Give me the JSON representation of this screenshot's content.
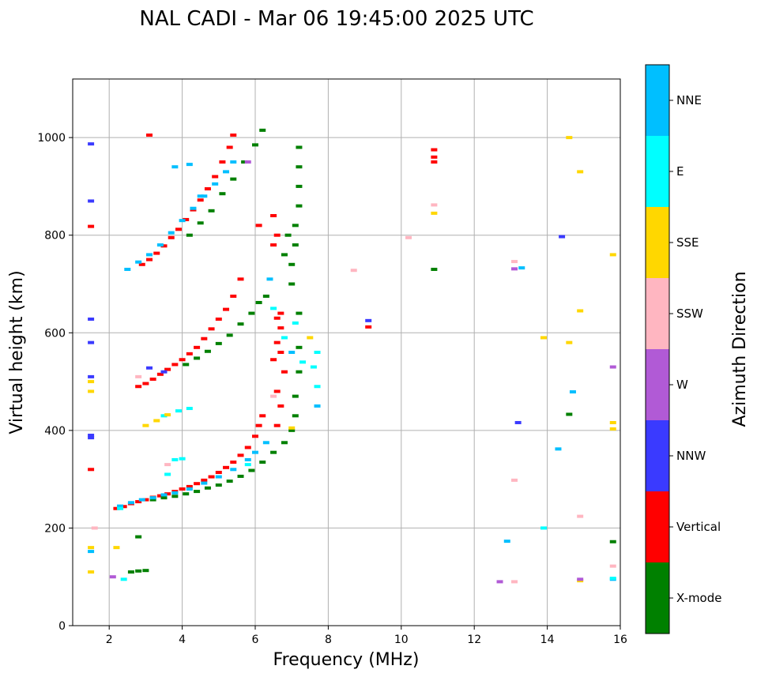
{
  "chart_data": {
    "type": "scatter",
    "title": "NAL CADI - Mar 06 19:45:00 2025 UTC",
    "xlabel": "Frequency (MHz)",
    "ylabel": "Virtual height (km)",
    "xlim": [
      1,
      16
    ],
    "ylim": [
      0,
      1120
    ],
    "xticks": [
      2,
      4,
      6,
      8,
      10,
      12,
      14,
      16
    ],
    "yticks": [
      0,
      200,
      400,
      600,
      800,
      1000
    ],
    "grid": true,
    "colorbar": {
      "title": "Azimuth Direction",
      "categories": [
        {
          "label": "X-mode",
          "color": "#008000"
        },
        {
          "label": "Vertical",
          "color": "#ff0000"
        },
        {
          "label": "NNW",
          "color": "#3a3aff"
        },
        {
          "label": "W",
          "color": "#b15ad6"
        },
        {
          "label": "SSW",
          "color": "#ffb6c1"
        },
        {
          "label": "SSE",
          "color": "#ffd700"
        },
        {
          "label": "E",
          "color": "#00ffff"
        },
        {
          "label": "NNE",
          "color": "#00bfff"
        }
      ]
    },
    "series": [
      {
        "name": "Vertical",
        "color": "#ff0000",
        "points": [
          [
            2.2,
            240
          ],
          [
            2.4,
            244
          ],
          [
            2.6,
            250
          ],
          [
            2.8,
            254
          ],
          [
            3.0,
            258
          ],
          [
            3.2,
            263
          ],
          [
            3.4,
            266
          ],
          [
            3.6,
            270
          ],
          [
            3.8,
            275
          ],
          [
            4.0,
            280
          ],
          [
            4.2,
            285
          ],
          [
            4.4,
            291
          ],
          [
            4.6,
            298
          ],
          [
            4.8,
            305
          ],
          [
            5.0,
            314
          ],
          [
            5.2,
            324
          ],
          [
            5.4,
            335
          ],
          [
            5.6,
            349
          ],
          [
            5.8,
            365
          ],
          [
            6.0,
            388
          ],
          [
            6.1,
            410
          ],
          [
            6.2,
            430
          ],
          [
            2.8,
            490
          ],
          [
            3.0,
            496
          ],
          [
            3.2,
            505
          ],
          [
            3.4,
            515
          ],
          [
            3.6,
            525
          ],
          [
            3.8,
            535
          ],
          [
            4.0,
            545
          ],
          [
            4.2,
            557
          ],
          [
            4.4,
            570
          ],
          [
            4.6,
            588
          ],
          [
            4.8,
            608
          ],
          [
            5.0,
            628
          ],
          [
            5.2,
            648
          ],
          [
            5.4,
            675
          ],
          [
            5.6,
            710
          ],
          [
            2.9,
            740
          ],
          [
            3.1,
            750
          ],
          [
            3.3,
            763
          ],
          [
            3.5,
            778
          ],
          [
            3.7,
            795
          ],
          [
            3.9,
            812
          ],
          [
            4.1,
            832
          ],
          [
            4.3,
            852
          ],
          [
            4.5,
            872
          ],
          [
            4.7,
            895
          ],
          [
            4.9,
            920
          ],
          [
            5.1,
            950
          ],
          [
            5.3,
            980
          ],
          [
            5.4,
            1005
          ],
          [
            6.6,
            410
          ],
          [
            6.7,
            450
          ],
          [
            6.6,
            480
          ],
          [
            6.8,
            520
          ],
          [
            6.5,
            545
          ],
          [
            6.7,
            560
          ],
          [
            6.6,
            580
          ],
          [
            6.7,
            610
          ],
          [
            6.6,
            630
          ],
          [
            6.7,
            640
          ],
          [
            6.5,
            840
          ],
          [
            6.6,
            800
          ],
          [
            6.5,
            780
          ],
          [
            6.1,
            820
          ],
          [
            10.9,
            975
          ],
          [
            10.9,
            960
          ],
          [
            10.9,
            950
          ],
          [
            9.1,
            612
          ],
          [
            3.1,
            1005
          ],
          [
            1.5,
            818
          ],
          [
            1.5,
            320
          ]
        ]
      },
      {
        "name": "X-mode",
        "color": "#008000",
        "points": [
          [
            2.6,
            110
          ],
          [
            2.8,
            112
          ],
          [
            3.0,
            113
          ],
          [
            3.2,
            258
          ],
          [
            3.5,
            262
          ],
          [
            3.8,
            265
          ],
          [
            4.1,
            270
          ],
          [
            4.4,
            275
          ],
          [
            4.7,
            282
          ],
          [
            5.0,
            288
          ],
          [
            5.3,
            296
          ],
          [
            5.6,
            306
          ],
          [
            5.9,
            318
          ],
          [
            6.2,
            335
          ],
          [
            6.5,
            355
          ],
          [
            6.8,
            375
          ],
          [
            7.0,
            400
          ],
          [
            7.1,
            430
          ],
          [
            7.1,
            470
          ],
          [
            7.2,
            520
          ],
          [
            7.2,
            570
          ],
          [
            7.2,
            640
          ],
          [
            4.1,
            535
          ],
          [
            4.4,
            548
          ],
          [
            4.7,
            562
          ],
          [
            5.0,
            578
          ],
          [
            5.3,
            595
          ],
          [
            5.6,
            618
          ],
          [
            5.9,
            640
          ],
          [
            6.1,
            662
          ],
          [
            6.3,
            675
          ],
          [
            4.2,
            800
          ],
          [
            4.5,
            825
          ],
          [
            4.8,
            850
          ],
          [
            5.1,
            885
          ],
          [
            5.4,
            915
          ],
          [
            5.7,
            950
          ],
          [
            6.0,
            985
          ],
          [
            6.2,
            1015
          ],
          [
            7.0,
            700
          ],
          [
            7.0,
            740
          ],
          [
            7.1,
            780
          ],
          [
            7.1,
            820
          ],
          [
            7.2,
            860
          ],
          [
            7.2,
            900
          ],
          [
            7.2,
            940
          ],
          [
            7.2,
            980
          ],
          [
            6.8,
            760
          ],
          [
            6.9,
            800
          ],
          [
            10.9,
            730
          ],
          [
            14.6,
            433
          ],
          [
            15.8,
            172
          ],
          [
            2.8,
            182
          ]
        ]
      },
      {
        "name": "NNE",
        "color": "#00bfff",
        "points": [
          [
            2.3,
            245
          ],
          [
            2.6,
            252
          ],
          [
            2.9,
            258
          ],
          [
            3.2,
            262
          ],
          [
            3.5,
            268
          ],
          [
            3.8,
            272
          ],
          [
            4.2,
            280
          ],
          [
            4.6,
            292
          ],
          [
            5.0,
            305
          ],
          [
            5.4,
            320
          ],
          [
            5.8,
            340
          ],
          [
            6.0,
            355
          ],
          [
            6.3,
            375
          ],
          [
            2.5,
            730
          ],
          [
            2.8,
            745
          ],
          [
            3.1,
            760
          ],
          [
            3.4,
            780
          ],
          [
            3.7,
            805
          ],
          [
            4.0,
            830
          ],
          [
            4.3,
            855
          ],
          [
            4.6,
            880
          ],
          [
            4.9,
            905
          ],
          [
            5.2,
            930
          ],
          [
            5.4,
            950
          ],
          [
            3.8,
            940
          ],
          [
            4.2,
            945
          ],
          [
            4.5,
            880
          ],
          [
            6.4,
            710
          ],
          [
            7.0,
            560
          ],
          [
            7.7,
            450
          ],
          [
            13.3,
            733
          ],
          [
            12.9,
            173
          ],
          [
            14.3,
            362
          ],
          [
            15.8,
            95
          ],
          [
            14.7,
            479
          ],
          [
            1.5,
            152
          ]
        ]
      },
      {
        "name": "E",
        "color": "#00ffff",
        "points": [
          [
            3.5,
            430
          ],
          [
            3.9,
            440
          ],
          [
            4.2,
            445
          ],
          [
            3.8,
            340
          ],
          [
            4.0,
            342
          ],
          [
            3.6,
            310
          ],
          [
            6.5,
            650
          ],
          [
            6.8,
            590
          ],
          [
            7.1,
            620
          ],
          [
            7.7,
            560
          ],
          [
            7.6,
            530
          ],
          [
            7.3,
            540
          ],
          [
            5.8,
            330
          ],
          [
            2.4,
            95
          ],
          [
            13.9,
            200
          ],
          [
            15.8,
            97
          ],
          [
            7.7,
            490
          ],
          [
            2.3,
            240
          ]
        ]
      },
      {
        "name": "SSE",
        "color": "#ffd700",
        "points": [
          [
            3.0,
            410
          ],
          [
            3.3,
            420
          ],
          [
            3.6,
            432
          ],
          [
            7.0,
            405
          ],
          [
            7.5,
            590
          ],
          [
            13.9,
            590
          ],
          [
            14.6,
            580
          ],
          [
            14.9,
            645
          ],
          [
            14.9,
            930
          ],
          [
            14.6,
            1000
          ],
          [
            15.8,
            760
          ],
          [
            15.8,
            403
          ],
          [
            15.8,
            416
          ],
          [
            14.9,
            92
          ],
          [
            1.5,
            500
          ],
          [
            1.5,
            480
          ],
          [
            1.5,
            110
          ],
          [
            10.9,
            845
          ],
          [
            2.2,
            160
          ],
          [
            1.5,
            160
          ]
        ]
      },
      {
        "name": "SSW",
        "color": "#ffb6c1",
        "points": [
          [
            3.6,
            330
          ],
          [
            6.5,
            470
          ],
          [
            8.7,
            728
          ],
          [
            10.2,
            795
          ],
          [
            10.9,
            862
          ],
          [
            13.1,
            746
          ],
          [
            13.1,
            298
          ],
          [
            15.8,
            122
          ],
          [
            13.1,
            90
          ],
          [
            14.9,
            224
          ],
          [
            2.8,
            510
          ],
          [
            1.6,
            200
          ]
        ]
      },
      {
        "name": "W",
        "color": "#b15ad6",
        "points": [
          [
            12.7,
            90
          ],
          [
            14.9,
            95
          ],
          [
            15.8,
            530
          ],
          [
            13.1,
            731
          ],
          [
            5.8,
            950
          ],
          [
            2.1,
            100
          ]
        ]
      },
      {
        "name": "NNW",
        "color": "#3a3aff",
        "points": [
          [
            1.5,
            987
          ],
          [
            1.5,
            870
          ],
          [
            1.5,
            628
          ],
          [
            1.5,
            580
          ],
          [
            1.5,
            510
          ],
          [
            1.5,
            390
          ],
          [
            1.5,
            385
          ],
          [
            3.1,
            528
          ],
          [
            9.1,
            625
          ],
          [
            13.2,
            416
          ],
          [
            14.4,
            797
          ],
          [
            3.5,
            520
          ]
        ]
      }
    ]
  }
}
